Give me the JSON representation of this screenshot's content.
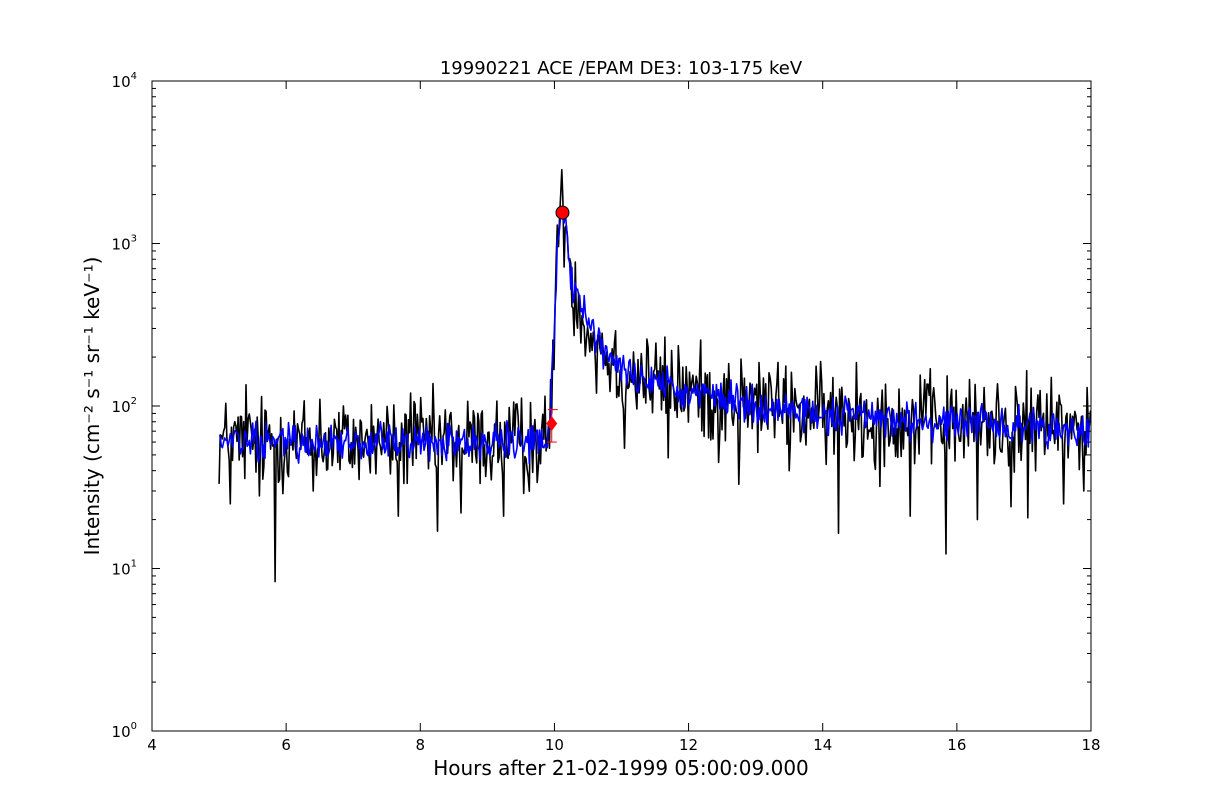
{
  "chart_data": {
    "type": "line",
    "title": "19990221 ACE /EPAM DE3: 103-175 keV",
    "xlabel": "Hours after 21-02-1999 05:00:09.000",
    "ylabel": "Intensity (cm⁻² s⁻¹ sr⁻¹ keV⁻¹)",
    "yscale": "log",
    "xlim": [
      4,
      18
    ],
    "ylim": [
      1,
      10000
    ],
    "xticks": [
      4,
      6,
      8,
      10,
      12,
      14,
      16,
      18
    ],
    "yticks": [
      {
        "base": "10",
        "exp": "0",
        "value": 1
      },
      {
        "base": "10",
        "exp": "1",
        "value": 10
      },
      {
        "base": "10",
        "exp": "2",
        "value": 100
      },
      {
        "base": "10",
        "exp": "3",
        "value": 1000
      },
      {
        "base": "10",
        "exp": "4",
        "value": 10000
      }
    ],
    "grid": false,
    "series": [
      {
        "role": "raw",
        "color": "#000000",
        "x_range": [
          5.0,
          18.0
        ],
        "sampling_hours": 0.0167,
        "profile": [
          {
            "x": 5.0,
            "y": 60
          },
          {
            "x": 9.9,
            "y": 60
          },
          {
            "x": 9.95,
            "y": 90
          },
          {
            "x": 10.0,
            "y": 350
          },
          {
            "x": 10.05,
            "y": 1300
          },
          {
            "x": 10.1,
            "y": 1600
          },
          {
            "x": 10.18,
            "y": 1300
          },
          {
            "x": 10.25,
            "y": 600
          },
          {
            "x": 10.5,
            "y": 300
          },
          {
            "x": 11.0,
            "y": 160
          },
          {
            "x": 12.0,
            "y": 125
          },
          {
            "x": 13.0,
            "y": 100
          },
          {
            "x": 14.0,
            "y": 88
          },
          {
            "x": 16.0,
            "y": 78
          },
          {
            "x": 18.0,
            "y": 72
          }
        ],
        "dips": [
          {
            "x": 5.83,
            "y": 8.3
          },
          {
            "x": 5.17,
            "y": 25
          },
          {
            "x": 5.6,
            "y": 28
          },
          {
            "x": 6.4,
            "y": 30
          },
          {
            "x": 7.67,
            "y": 21
          },
          {
            "x": 8.25,
            "y": 17
          },
          {
            "x": 8.6,
            "y": 22
          },
          {
            "x": 9.25,
            "y": 21
          },
          {
            "x": 9.55,
            "y": 29
          },
          {
            "x": 10.63,
            "y": 120
          },
          {
            "x": 11.05,
            "y": 55
          },
          {
            "x": 11.7,
            "y": 48
          },
          {
            "x": 12.45,
            "y": 45
          },
          {
            "x": 12.75,
            "y": 33
          },
          {
            "x": 13.5,
            "y": 40
          },
          {
            "x": 14.23,
            "y": 16.5
          },
          {
            "x": 14.85,
            "y": 32
          },
          {
            "x": 15.3,
            "y": 21
          },
          {
            "x": 15.83,
            "y": 12.3
          },
          {
            "x": 16.3,
            "y": 20
          },
          {
            "x": 16.8,
            "y": 24
          },
          {
            "x": 17.05,
            "y": 20.5
          },
          {
            "x": 17.6,
            "y": 25
          },
          {
            "x": 17.9,
            "y": 30
          }
        ],
        "spikes": [
          {
            "x": 5.4,
            "y": 135
          },
          {
            "x": 6.5,
            "y": 110
          },
          {
            "x": 7.85,
            "y": 120
          },
          {
            "x": 9.65,
            "y": 105
          },
          {
            "x": 10.13,
            "y": 1850
          },
          {
            "x": 10.55,
            "y": 280
          },
          {
            "x": 11.3,
            "y": 210
          },
          {
            "x": 13.2,
            "y": 160
          },
          {
            "x": 14.5,
            "y": 185
          },
          {
            "x": 15.45,
            "y": 155
          },
          {
            "x": 16.4,
            "y": 130
          },
          {
            "x": 17.4,
            "y": 150
          },
          {
            "x": 17.95,
            "y": 130
          }
        ],
        "noise_dex": 0.14
      },
      {
        "role": "smoothed",
        "color": "#0000ff",
        "x_range": [
          5.0,
          18.0
        ],
        "noise_dex": 0.07
      }
    ],
    "markers": [
      {
        "shape": "circle",
        "x": 10.12,
        "y": 1550,
        "color": "#ff0000"
      },
      {
        "shape": "diamond",
        "x": 9.96,
        "y": 78,
        "color": "#ff0000",
        "error_y": [
          60,
          95
        ],
        "error_x": [
          9.9,
          10.05
        ]
      }
    ]
  }
}
